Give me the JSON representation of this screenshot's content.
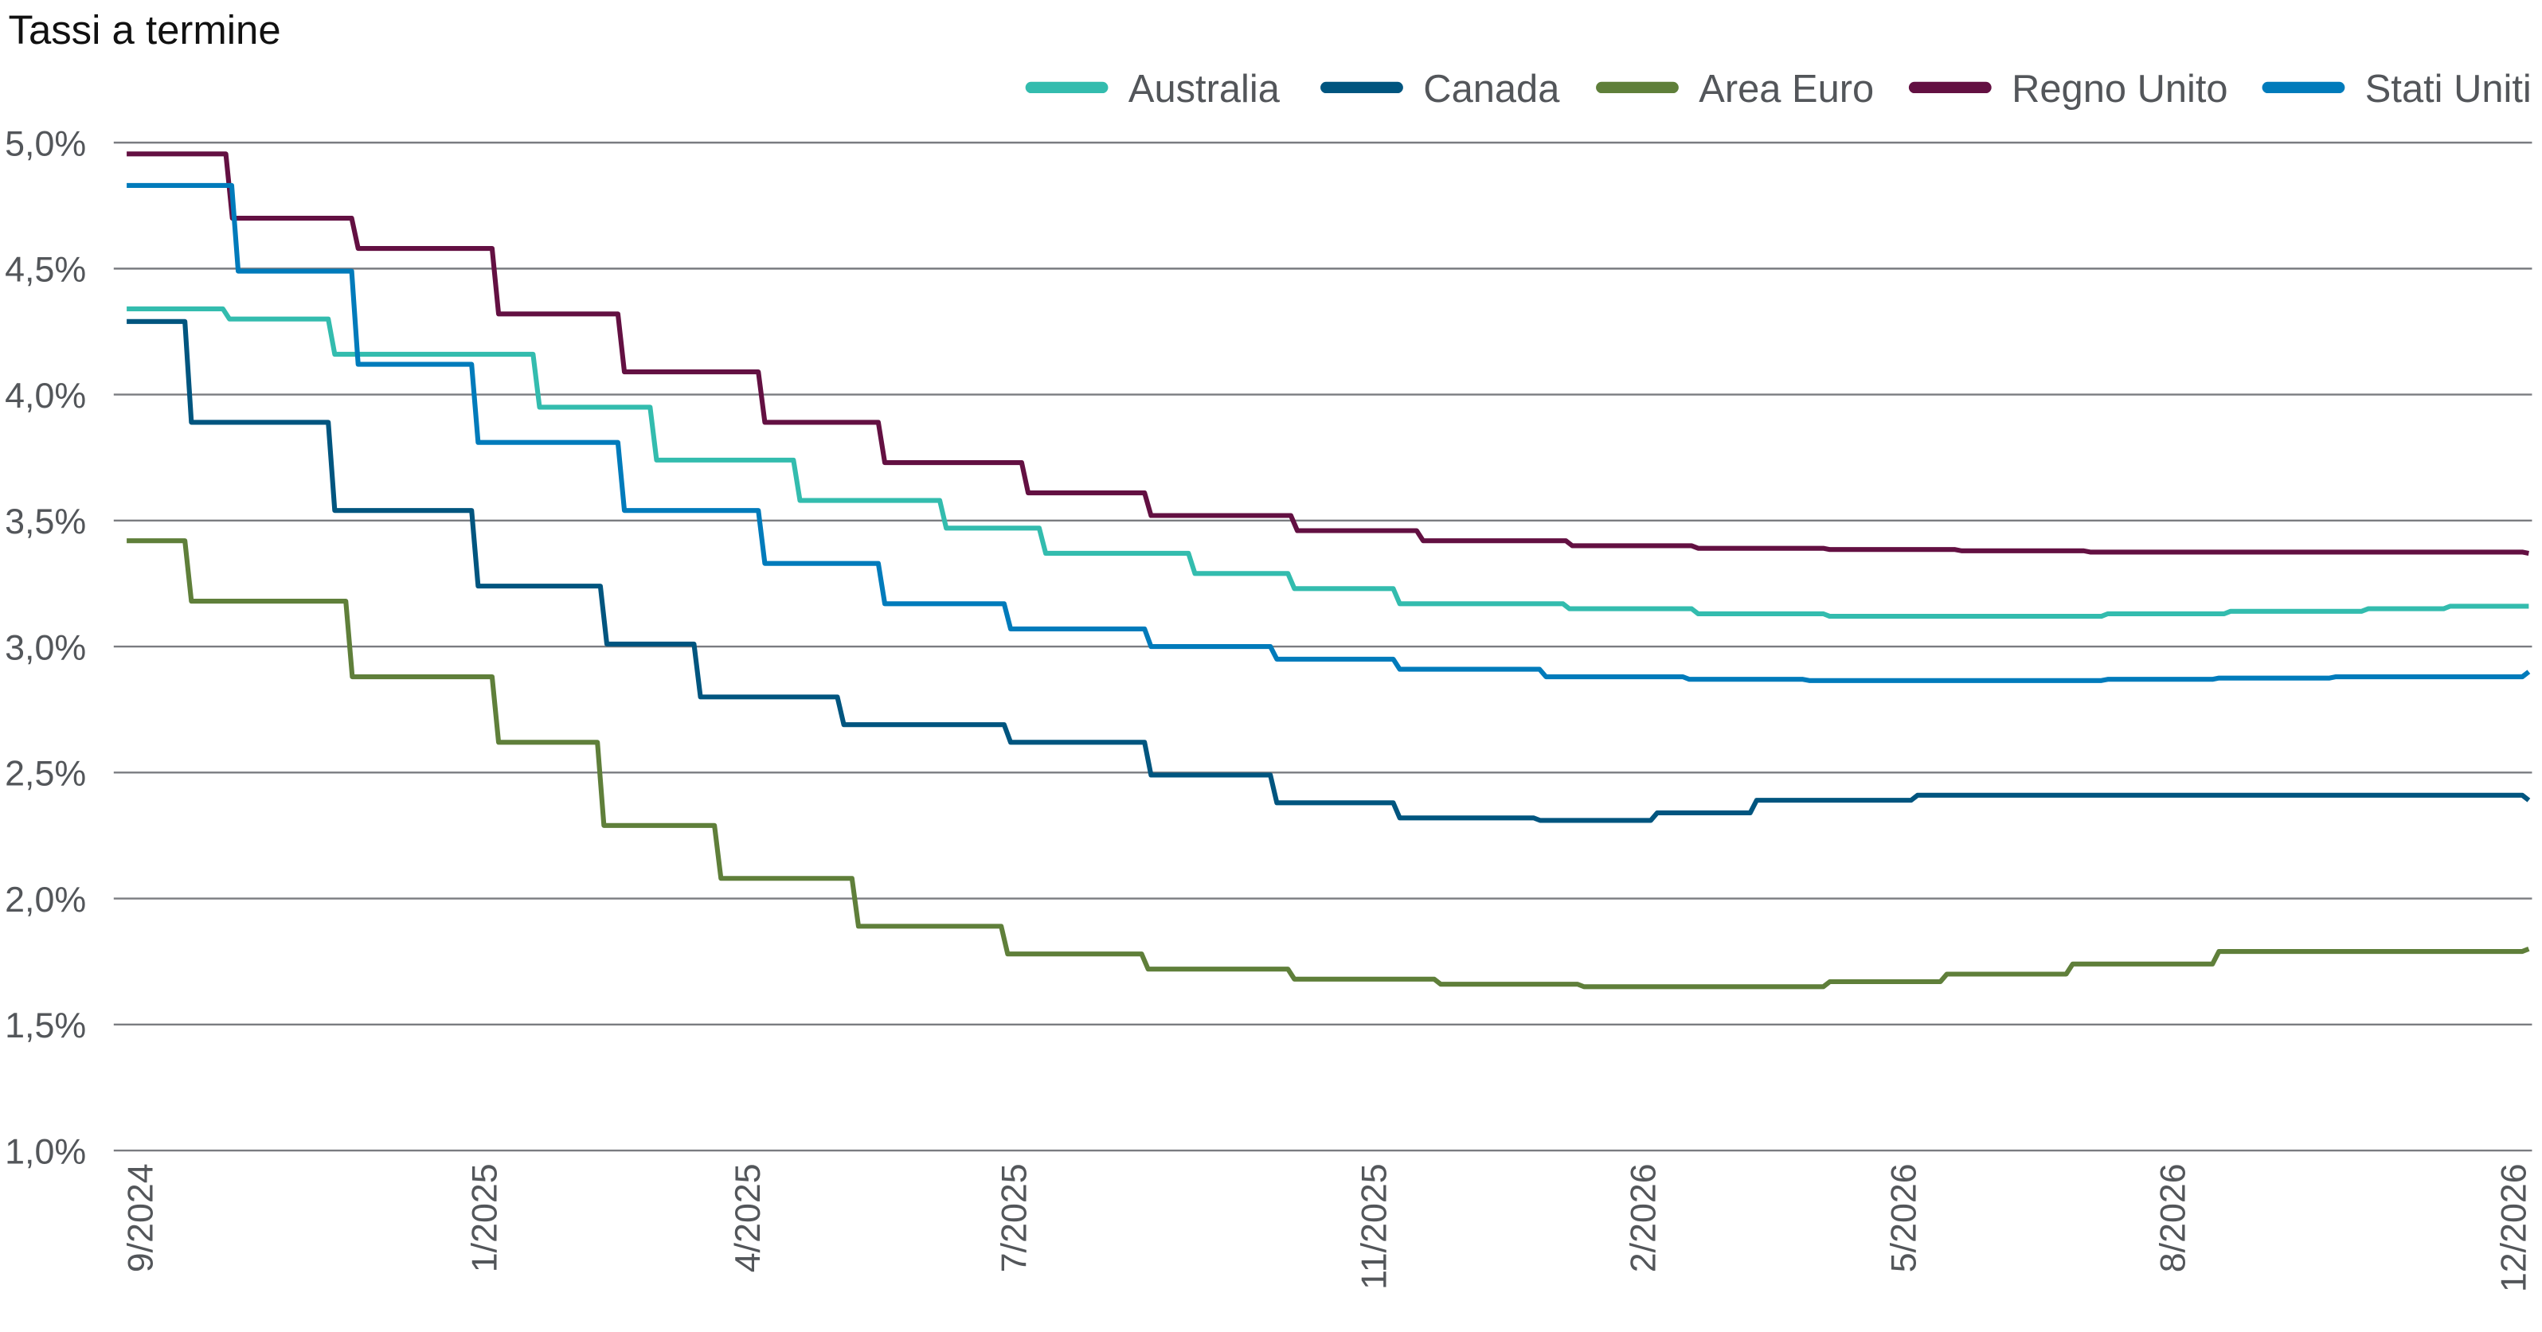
{
  "chart_data": {
    "type": "line",
    "title": "Tassi a termine",
    "xlabel": "",
    "ylabel": "",
    "xlim": [
      "2024-09-01",
      "2026-12-01"
    ],
    "ylim": [
      1.0,
      5.0
    ],
    "grid": true,
    "legend_placement": "top-right",
    "y_ticks": [
      1.0,
      1.5,
      2.0,
      2.5,
      3.0,
      3.5,
      4.0,
      4.5,
      5.0
    ],
    "y_tick_labels": [
      "1,0%",
      "1,5%",
      "2,0%",
      "2,5%",
      "3,0%",
      "3,5%",
      "4,0%",
      "4,5%",
      "5,0%"
    ],
    "x_ticks": [
      "2024-09-01",
      "2025-01-01",
      "2025-04-01",
      "2025-07-01",
      "2025-11-01",
      "2026-02-01",
      "2026-05-01",
      "2026-08-01",
      "2026-12-01"
    ],
    "x_tick_labels": [
      "9/2024",
      "1/2025",
      "4/2025",
      "7/2025",
      "11/2025",
      "2/2026",
      "5/2026",
      "8/2026",
      "12/2026"
    ],
    "series": [
      {
        "name": "Australia",
        "color": "#33bcae",
        "points": [
          [
            "2024-09-01",
            4.34
          ],
          [
            "2024-10-05",
            4.3
          ],
          [
            "2024-11-10",
            4.16
          ],
          [
            "2025-01-19",
            3.95
          ],
          [
            "2025-02-28",
            3.74
          ],
          [
            "2025-04-18",
            3.58
          ],
          [
            "2025-06-07",
            3.47
          ],
          [
            "2025-07-11",
            3.37
          ],
          [
            "2025-08-31",
            3.29
          ],
          [
            "2025-10-04",
            3.23
          ],
          [
            "2025-11-09",
            3.17
          ],
          [
            "2026-01-06",
            3.15
          ],
          [
            "2026-02-19",
            3.13
          ],
          [
            "2026-04-05",
            3.12
          ],
          [
            "2026-07-09",
            3.13
          ],
          [
            "2026-08-20",
            3.14
          ],
          [
            "2026-10-06",
            3.15
          ],
          [
            "2026-11-03",
            3.16
          ],
          [
            "2026-12-01",
            3.16
          ]
        ]
      },
      {
        "name": "Canada",
        "color": "#00557f",
        "points": [
          [
            "2024-09-01",
            4.29
          ],
          [
            "2024-09-22",
            3.89
          ],
          [
            "2024-11-10",
            3.54
          ],
          [
            "2024-12-29",
            3.24
          ],
          [
            "2025-02-11",
            3.01
          ],
          [
            "2025-03-15",
            2.8
          ],
          [
            "2025-05-03",
            2.69
          ],
          [
            "2025-06-29",
            2.62
          ],
          [
            "2025-08-16",
            2.49
          ],
          [
            "2025-09-28",
            2.38
          ],
          [
            "2025-11-09",
            2.32
          ],
          [
            "2025-12-27",
            2.31
          ],
          [
            "2026-02-05",
            2.34
          ],
          [
            "2026-03-11",
            2.39
          ],
          [
            "2026-05-05",
            2.41
          ],
          [
            "2026-08-16",
            2.41
          ],
          [
            "2026-12-01",
            2.39
          ]
        ]
      },
      {
        "name": "Area Euro",
        "color": "#5f7f3a",
        "points": [
          [
            "2024-09-01",
            3.42
          ],
          [
            "2024-09-22",
            3.18
          ],
          [
            "2024-11-16",
            2.88
          ],
          [
            "2025-01-05",
            2.62
          ],
          [
            "2025-02-10",
            2.29
          ],
          [
            "2025-03-22",
            2.08
          ],
          [
            "2025-05-08",
            1.89
          ],
          [
            "2025-06-28",
            1.78
          ],
          [
            "2025-08-15",
            1.72
          ],
          [
            "2025-10-04",
            1.68
          ],
          [
            "2025-11-23",
            1.66
          ],
          [
            "2026-01-11",
            1.65
          ],
          [
            "2026-04-05",
            1.67
          ],
          [
            "2026-05-15",
            1.7
          ],
          [
            "2026-06-27",
            1.74
          ],
          [
            "2026-08-16",
            1.79
          ],
          [
            "2026-10-06",
            1.79
          ],
          [
            "2026-12-01",
            1.8
          ]
        ]
      },
      {
        "name": "Regno Unito",
        "color": "#631042",
        "points": [
          [
            "2024-09-01",
            4.955
          ],
          [
            "2024-10-06",
            4.7
          ],
          [
            "2024-11-18",
            4.58
          ],
          [
            "2025-01-05",
            4.32
          ],
          [
            "2025-02-17",
            4.09
          ],
          [
            "2025-04-06",
            3.89
          ],
          [
            "2025-05-17",
            3.73
          ],
          [
            "2025-07-05",
            3.61
          ],
          [
            "2025-08-16",
            3.52
          ],
          [
            "2025-10-05",
            3.46
          ],
          [
            "2025-11-17",
            3.42
          ],
          [
            "2026-01-07",
            3.4
          ],
          [
            "2026-02-19",
            3.39
          ],
          [
            "2026-04-05",
            3.385
          ],
          [
            "2026-05-20",
            3.38
          ],
          [
            "2026-07-03",
            3.375
          ],
          [
            "2026-12-01",
            3.37
          ]
        ]
      },
      {
        "name": "Stati Uniti",
        "color": "#007bbb",
        "points": [
          [
            "2024-09-01",
            4.83
          ],
          [
            "2024-10-08",
            4.49
          ],
          [
            "2024-11-18",
            4.12
          ],
          [
            "2024-12-29",
            3.81
          ],
          [
            "2025-02-17",
            3.54
          ],
          [
            "2025-04-06",
            3.33
          ],
          [
            "2025-05-17",
            3.17
          ],
          [
            "2025-06-29",
            3.07
          ],
          [
            "2025-08-16",
            3.0
          ],
          [
            "2025-09-28",
            2.95
          ],
          [
            "2025-11-09",
            2.91
          ],
          [
            "2025-12-29",
            2.88
          ],
          [
            "2026-02-16",
            2.87
          ],
          [
            "2026-03-29",
            2.865
          ],
          [
            "2026-07-09",
            2.87
          ],
          [
            "2026-08-16",
            2.875
          ],
          [
            "2026-09-25",
            2.88
          ],
          [
            "2026-12-01",
            2.9
          ]
        ]
      }
    ]
  }
}
